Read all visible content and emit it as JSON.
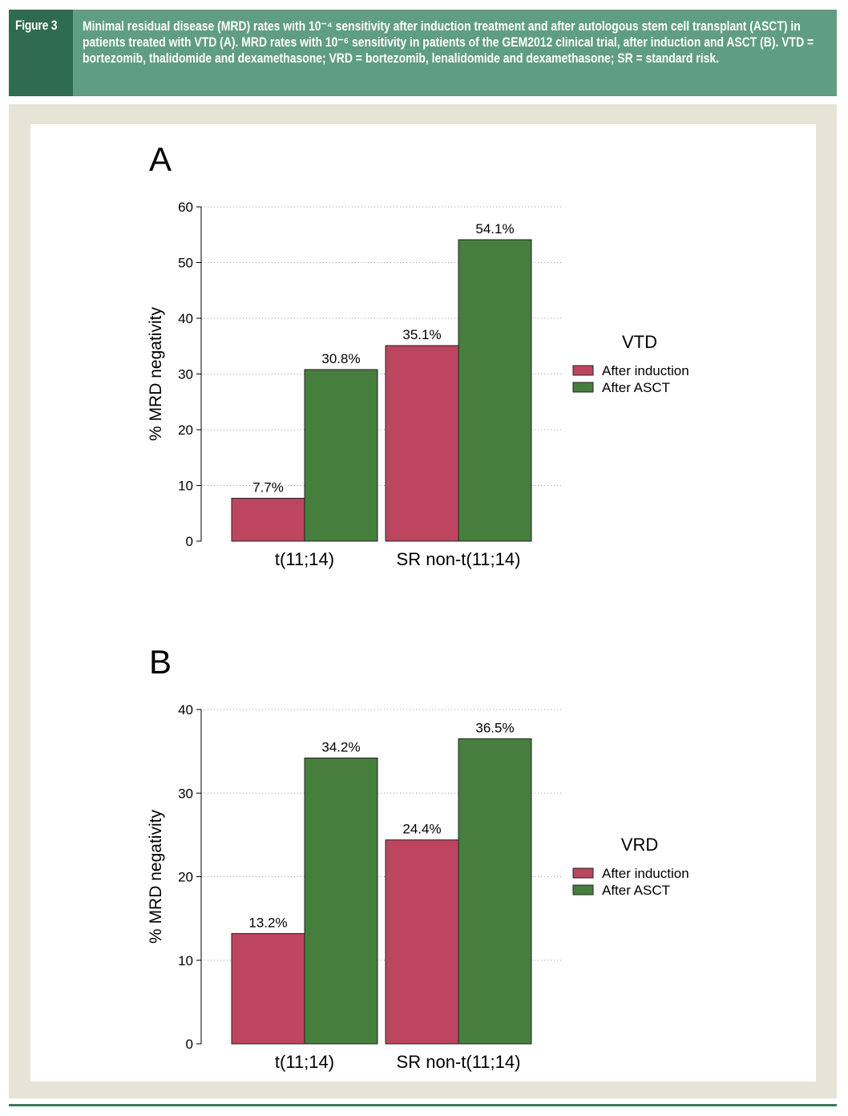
{
  "header": {
    "figure_label": "Figure 3",
    "caption": "Minimal residual disease (MRD) rates with 10⁻⁴ sensitivity after induction treatment and after autologous stem cell transplant (ASCT) in patients treated with VTD (A). MRD rates with 10⁻⁶ sensitivity in patients of the GEM2012 clinical trial, after induction and ASCT (B). VTD = bortezomib, thalidomide and dexamethasone; VRD = bortezomib, lenalidomide and dexamethasone; SR = standard risk."
  },
  "colors": {
    "after_induction": "#bd4560",
    "after_asct": "#467f3d",
    "header_bg": "#5f9e82",
    "label_bg": "#2f6b4e",
    "frame_bg": "#e6e3d7"
  },
  "chart_data": [
    {
      "type": "bar",
      "panel_label": "A",
      "categories": [
        "t(11;14)",
        "SR non-t(11;14)"
      ],
      "series": [
        {
          "name": "After induction",
          "values": [
            7.7,
            35.1
          ],
          "labels": [
            "7.7%",
            "35.1%"
          ]
        },
        {
          "name": "After ASCT",
          "values": [
            30.8,
            54.1
          ],
          "labels": [
            "30.8%",
            "54.1%"
          ]
        }
      ],
      "ylabel": "% MRD negativity",
      "ylim": [
        0,
        60
      ],
      "yticks": [
        0,
        10,
        20,
        30,
        40,
        50,
        60
      ],
      "legend_title": "VTD",
      "legend_position": "right",
      "grid": "dotted horizontal"
    },
    {
      "type": "bar",
      "panel_label": "B",
      "categories": [
        "t(11;14)",
        "SR non-t(11;14)"
      ],
      "series": [
        {
          "name": "After induction",
          "values": [
            13.2,
            24.4
          ],
          "labels": [
            "13.2%",
            "24.4%"
          ]
        },
        {
          "name": "After ASCT",
          "values": [
            34.2,
            36.5
          ],
          "labels": [
            "34.2%",
            "36.5%"
          ]
        }
      ],
      "ylabel": "% MRD negativity",
      "ylim": [
        0,
        40
      ],
      "yticks": [
        0,
        10,
        20,
        30,
        40
      ],
      "legend_title": "VRD",
      "legend_position": "right",
      "grid": "dotted horizontal"
    }
  ]
}
